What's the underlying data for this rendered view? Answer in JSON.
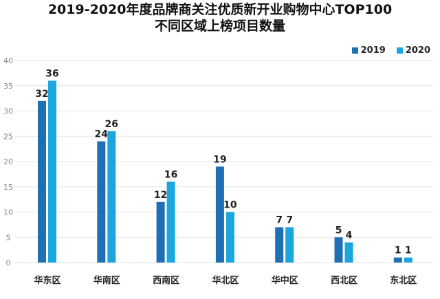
{
  "chart_data": {
    "type": "bar",
    "title": "2019-2020年度品牌商关注优质新开业购物中心TOP100",
    "subtitle": "不同区域上榜项目数量",
    "categories": [
      "华东区",
      "华南区",
      "西南区",
      "华北区",
      "华中区",
      "西北区",
      "东北区"
    ],
    "series": [
      {
        "name": "2019",
        "values": [
          32,
          24,
          12,
          19,
          7,
          5,
          1
        ],
        "color": "#1f6fb5"
      },
      {
        "name": "2020",
        "values": [
          36,
          26,
          16,
          10,
          7,
          4,
          1
        ],
        "color": "#1ba6e0"
      }
    ],
    "ylim": [
      0,
      40
    ],
    "yticks": [
      0,
      5,
      10,
      15,
      20,
      25,
      30,
      35,
      40
    ],
    "grid": true,
    "legend": "top-right",
    "xlabel": "",
    "ylabel": ""
  }
}
